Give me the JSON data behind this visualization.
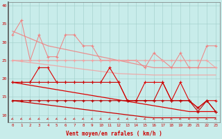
{
  "x": [
    0,
    1,
    2,
    3,
    4,
    5,
    6,
    7,
    8,
    9,
    10,
    11,
    12,
    13,
    14,
    15,
    16,
    17,
    18,
    19,
    20,
    21,
    22,
    23
  ],
  "line_pink1_y": [
    32,
    36,
    25,
    32,
    26,
    26,
    32,
    32,
    29,
    29,
    25,
    25,
    25,
    25,
    25,
    23,
    27,
    25,
    23,
    27,
    23,
    23,
    29,
    29
  ],
  "line_pink2_y": [
    25,
    25,
    25,
    25,
    25,
    25,
    25,
    25,
    25,
    25,
    25,
    25,
    25,
    25,
    25,
    25,
    25,
    25,
    25,
    25,
    25,
    25,
    25,
    23
  ],
  "trend_pink1": [
    33,
    32,
    31,
    30,
    29,
    28.5,
    28,
    27.5,
    27,
    26.5,
    26,
    25.5,
    25,
    24.5,
    24,
    23.5,
    23,
    23,
    23,
    23,
    23,
    23,
    23,
    23
  ],
  "trend_pink2": [
    25,
    24.7,
    24.4,
    24.1,
    23.8,
    23.5,
    23.2,
    22.9,
    22.6,
    22.3,
    22.0,
    21.7,
    21.4,
    21.3,
    21.2,
    21.1,
    21.0,
    21.0,
    21.0,
    21.0,
    21.0,
    21.0,
    21.0,
    21.0
  ],
  "line_red1_y": [
    19,
    19,
    19,
    23,
    23,
    19,
    19,
    19,
    19,
    19,
    19,
    23,
    19,
    14,
    14,
    19,
    19,
    19,
    14,
    19,
    14,
    12,
    14,
    14
  ],
  "line_red2_y": [
    19,
    19,
    19,
    19,
    19,
    19,
    19,
    19,
    19,
    19,
    19,
    19,
    19,
    14,
    14,
    14,
    14,
    19,
    14,
    14,
    14,
    12,
    14,
    11
  ],
  "line_red3_y": [
    14,
    14,
    14,
    14,
    14,
    14,
    14,
    14,
    14,
    14,
    14,
    14,
    14,
    14,
    14,
    14,
    14,
    14,
    14,
    14,
    14,
    11,
    14,
    11
  ],
  "trend_red1": [
    19,
    18.6,
    18.2,
    17.8,
    17.4,
    17.0,
    16.6,
    16.2,
    15.8,
    15.4,
    15.0,
    14.6,
    14.2,
    13.8,
    13.4,
    13.0,
    12.6,
    12.2,
    11.8,
    11.4,
    11.0,
    11.0,
    11.0,
    11.0
  ],
  "trend_red2": [
    14,
    13.7,
    13.4,
    13.1,
    12.8,
    12.5,
    12.2,
    11.9,
    11.6,
    11.3,
    11.0,
    10.7,
    10.4,
    10.1,
    9.8,
    9.5,
    9.3,
    9.3,
    9.3,
    9.3,
    9.3,
    9.3,
    9.3,
    9.3
  ],
  "xlabel": "Vent moyen/en rafales ( km/h )",
  "ylim": [
    8,
    41
  ],
  "xlim": [
    -0.5,
    23.5
  ],
  "yticks": [
    10,
    15,
    20,
    25,
    30,
    35,
    40
  ],
  "xticks": [
    0,
    1,
    2,
    3,
    4,
    5,
    6,
    7,
    8,
    9,
    10,
    11,
    12,
    13,
    14,
    15,
    16,
    17,
    18,
    19,
    20,
    21,
    22,
    23
  ],
  "bg_color": "#c8ecea",
  "grid_color": "#a0ccc8",
  "color_pink1": "#f08080",
  "color_pink2": "#f4a0a0",
  "color_red1": "#dd0000",
  "color_red2": "#cc0000",
  "color_red3": "#bb0000",
  "arrow_color": "#cc2222"
}
